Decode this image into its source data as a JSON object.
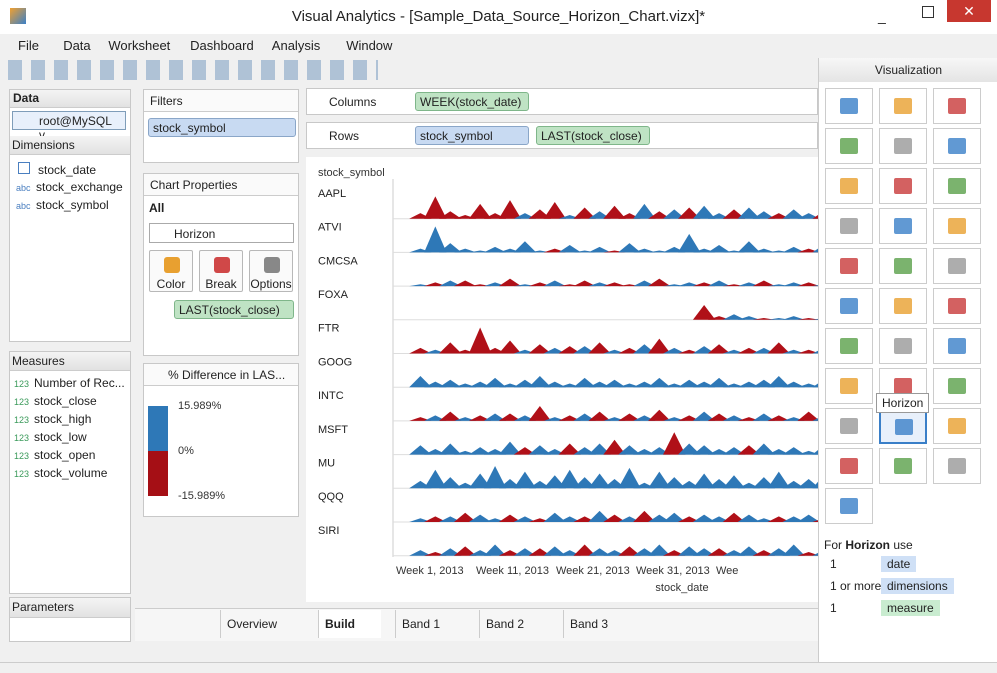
{
  "window": {
    "title": "Visual Analytics - [Sample_Data_Source_Horizon_Chart.vizx]*"
  },
  "menu": [
    "File",
    "Data",
    "Worksheet",
    "Dashboard",
    "Analysis",
    "Window"
  ],
  "data_panel": {
    "title": "Data",
    "source": "root@MySQL v...",
    "dimensions_title": "Dimensions",
    "dimensions": [
      {
        "icon": "",
        "name": "stock_date"
      },
      {
        "icon": "abc",
        "name": "stock_exchange"
      },
      {
        "icon": "abc",
        "name": "stock_symbol"
      }
    ],
    "measures_title": "Measures",
    "measures": [
      {
        "icon": "123",
        "name": "Number of Rec..."
      },
      {
        "icon": "123",
        "name": "stock_close"
      },
      {
        "icon": "123",
        "name": "stock_high"
      },
      {
        "icon": "123",
        "name": "stock_low"
      },
      {
        "icon": "123",
        "name": "stock_open"
      },
      {
        "icon": "123",
        "name": "stock_volume"
      }
    ],
    "parameters_title": "Parameters"
  },
  "filters": {
    "title": "Filters",
    "items": [
      "stock_symbol"
    ]
  },
  "chart_properties": {
    "title": "Chart Properties",
    "scope": "All",
    "chart_type": "Horizon",
    "buttons": [
      "Color",
      "Break",
      "Options"
    ],
    "measure": "LAST(stock_close)"
  },
  "color_legend": {
    "title": "% Difference in LAS...",
    "ticks": [
      {
        "value": 15.989,
        "label": "15.989%"
      },
      {
        "value": 0,
        "label": "0%"
      },
      {
        "value": -15.989,
        "label": "-15.989%"
      }
    ]
  },
  "shelves": {
    "columns_label": "Columns",
    "columns": [
      "WEEK(stock_date)"
    ],
    "rows_label": "Rows",
    "rows": [
      "stock_symbol",
      "LAST(stock_close)"
    ]
  },
  "chart": {
    "header": "stock_symbol",
    "x_axis_title": "stock_date",
    "x_labels": [
      "Week 1, 2013",
      "Week 11, 2013",
      "Week 21, 2013",
      "Week 31, 2013",
      "Wee"
    ],
    "rows": [
      {
        "label": "AAPL",
        "values": [
          0,
          -3,
          -12,
          -4,
          -2,
          -8,
          -3,
          -10,
          3,
          -5,
          -9,
          2,
          -6,
          4,
          -7,
          -3,
          8,
          -4,
          5,
          -6,
          7,
          3,
          -5,
          6,
          4,
          -3,
          5,
          3,
          -4,
          2
        ]
      },
      {
        "label": "ATVI",
        "values": [
          0,
          2,
          14,
          5,
          2,
          1,
          3,
          2,
          6,
          1,
          -2,
          4,
          1,
          3,
          -1,
          5,
          2,
          1,
          3,
          10,
          2,
          4,
          1,
          6,
          2,
          1,
          3,
          -2,
          4,
          1
        ]
      },
      {
        "label": "CMCSA",
        "values": [
          0,
          1,
          -2,
          3,
          -3,
          -1,
          2,
          -4,
          1,
          -2,
          3,
          -1,
          -3,
          2,
          -2,
          -1,
          3,
          -4,
          1,
          2,
          -2,
          3,
          -1,
          2,
          -3,
          1,
          2,
          -2,
          1,
          2
        ]
      },
      {
        "label": "FOXA",
        "values": [
          null,
          null,
          null,
          null,
          null,
          null,
          null,
          null,
          null,
          null,
          null,
          null,
          null,
          null,
          null,
          null,
          null,
          null,
          null,
          null,
          -8,
          -2,
          3,
          2,
          -1,
          1,
          2,
          -1,
          1,
          1
        ]
      },
      {
        "label": "FTR",
        "values": [
          0,
          -3,
          2,
          -6,
          -2,
          -14,
          -3,
          -7,
          2,
          -5,
          3,
          -4,
          4,
          -6,
          2,
          -3,
          5,
          -8,
          3,
          -2,
          4,
          -5,
          2,
          -3,
          3,
          -6,
          2,
          -2,
          3,
          -4
        ]
      },
      {
        "label": "GOOG",
        "values": [
          0,
          6,
          3,
          4,
          2,
          3,
          5,
          2,
          4,
          6,
          3,
          2,
          5,
          3,
          4,
          2,
          3,
          5,
          2,
          4,
          3,
          5,
          2,
          3,
          4,
          6,
          3,
          2,
          4,
          3
        ]
      },
      {
        "label": "INTC",
        "values": [
          0,
          -2,
          3,
          -5,
          2,
          -3,
          4,
          -4,
          3,
          -8,
          2,
          -3,
          4,
          -5,
          2,
          -4,
          3,
          -6,
          2,
          -3,
          5,
          -4,
          3,
          -2,
          4,
          -3,
          2,
          -5,
          3,
          -2
        ]
      },
      {
        "label": "MSFT",
        "values": [
          0,
          5,
          3,
          6,
          2,
          4,
          3,
          7,
          -4,
          5,
          3,
          -6,
          4,
          6,
          -8,
          5,
          3,
          4,
          -12,
          6,
          5,
          3,
          4,
          -5,
          6,
          3,
          4,
          2,
          5,
          3
        ]
      },
      {
        "label": "MU",
        "values": [
          0,
          4,
          10,
          6,
          3,
          8,
          12,
          5,
          9,
          4,
          7,
          10,
          6,
          8,
          5,
          11,
          3,
          9,
          6,
          4,
          8,
          5,
          7,
          3,
          6,
          9,
          4,
          5,
          7,
          6
        ]
      },
      {
        "label": "QQQ",
        "values": [
          0,
          2,
          -3,
          3,
          -5,
          4,
          2,
          -4,
          3,
          -2,
          5,
          3,
          -3,
          6,
          -4,
          3,
          -6,
          4,
          5,
          -3,
          4,
          3,
          -5,
          4,
          2,
          -3,
          3,
          4,
          -2,
          3
        ]
      },
      {
        "label": "SIRI",
        "values": [
          0,
          3,
          -2,
          4,
          -5,
          3,
          6,
          -3,
          4,
          -4,
          5,
          3,
          -6,
          4,
          3,
          -5,
          4,
          6,
          -3,
          5,
          4,
          -4,
          3,
          5,
          -3,
          4,
          6,
          -2,
          3,
          4
        ]
      }
    ]
  },
  "tabs": {
    "items": [
      "Overview",
      "Build",
      "Band 1",
      "Band 2",
      "Band 3"
    ]
  },
  "visualization": {
    "title": "Visualization",
    "tooltip": "Horizon",
    "for_prefix": "For",
    "for_name": "Horizon",
    "for_suffix": "use",
    "requirements": [
      {
        "count": "1",
        "what": "date"
      },
      {
        "count": "1 or more",
        "what": "dimensions"
      },
      {
        "count": "1",
        "what": "measure"
      }
    ]
  }
}
